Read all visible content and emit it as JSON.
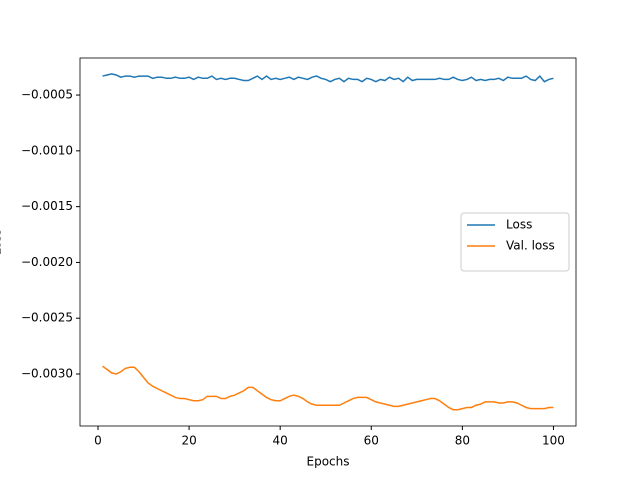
{
  "chart_data": {
    "type": "line",
    "xlabel": "Epochs",
    "ylabel": "Loss",
    "x": [
      1,
      2,
      3,
      4,
      5,
      6,
      7,
      8,
      9,
      10,
      11,
      12,
      13,
      14,
      15,
      16,
      17,
      18,
      19,
      20,
      21,
      22,
      23,
      24,
      25,
      26,
      27,
      28,
      29,
      30,
      31,
      32,
      33,
      34,
      35,
      36,
      37,
      38,
      39,
      40,
      41,
      42,
      43,
      44,
      45,
      46,
      47,
      48,
      49,
      50,
      51,
      52,
      53,
      54,
      55,
      56,
      57,
      58,
      59,
      60,
      61,
      62,
      63,
      64,
      65,
      66,
      67,
      68,
      69,
      70,
      71,
      72,
      73,
      74,
      75,
      76,
      77,
      78,
      79,
      80,
      81,
      82,
      83,
      84,
      85,
      86,
      87,
      88,
      89,
      90,
      91,
      92,
      93,
      94,
      95,
      96,
      97,
      98,
      99,
      100
    ],
    "series": [
      {
        "name": "Loss",
        "color": "#1f77b4",
        "values": [
          -0.00033,
          -0.00032,
          -0.00031,
          -0.00032,
          -0.00034,
          -0.00033,
          -0.00033,
          -0.00034,
          -0.00033,
          -0.00033,
          -0.00033,
          -0.00035,
          -0.00034,
          -0.00034,
          -0.00035,
          -0.00035,
          -0.00034,
          -0.00035,
          -0.00035,
          -0.00034,
          -0.00036,
          -0.00034,
          -0.00035,
          -0.00035,
          -0.00033,
          -0.00036,
          -0.00035,
          -0.00036,
          -0.00035,
          -0.00035,
          -0.00036,
          -0.00037,
          -0.00037,
          -0.00035,
          -0.00033,
          -0.00036,
          -0.00033,
          -0.00036,
          -0.00035,
          -0.00036,
          -0.00035,
          -0.00034,
          -0.00036,
          -0.00034,
          -0.00035,
          -0.00036,
          -0.00034,
          -0.00033,
          -0.00035,
          -0.00036,
          -0.00038,
          -0.00036,
          -0.00035,
          -0.00038,
          -0.00035,
          -0.00036,
          -0.00036,
          -0.00038,
          -0.00035,
          -0.00036,
          -0.00038,
          -0.00036,
          -0.00037,
          -0.00034,
          -0.00036,
          -0.00035,
          -0.00038,
          -0.00034,
          -0.00037,
          -0.00036,
          -0.00036,
          -0.00036,
          -0.00036,
          -0.00036,
          -0.00035,
          -0.00036,
          -0.00036,
          -0.00034,
          -0.00036,
          -0.00037,
          -0.00036,
          -0.00034,
          -0.00037,
          -0.00036,
          -0.00037,
          -0.00036,
          -0.00036,
          -0.00035,
          -0.00037,
          -0.00034,
          -0.00035,
          -0.00035,
          -0.00035,
          -0.00033,
          -0.00036,
          -0.00037,
          -0.00033,
          -0.00038,
          -0.00036,
          -0.00035
        ]
      },
      {
        "name": "Val. loss",
        "color": "#ff7f0e",
        "values": [
          -0.00293,
          -0.00296,
          -0.00299,
          -0.003,
          -0.00298,
          -0.00295,
          -0.00294,
          -0.00294,
          -0.00298,
          -0.00303,
          -0.00308,
          -0.00311,
          -0.00313,
          -0.00315,
          -0.00317,
          -0.00319,
          -0.00321,
          -0.00322,
          -0.00322,
          -0.00323,
          -0.00324,
          -0.00324,
          -0.00323,
          -0.0032,
          -0.0032,
          -0.0032,
          -0.00322,
          -0.00322,
          -0.0032,
          -0.00319,
          -0.00317,
          -0.00315,
          -0.00312,
          -0.00312,
          -0.00315,
          -0.00318,
          -0.00321,
          -0.00323,
          -0.00324,
          -0.00324,
          -0.00322,
          -0.0032,
          -0.00319,
          -0.0032,
          -0.00322,
          -0.00325,
          -0.00327,
          -0.00328,
          -0.00328,
          -0.00328,
          -0.00328,
          -0.00328,
          -0.00328,
          -0.00326,
          -0.00324,
          -0.00322,
          -0.00321,
          -0.00321,
          -0.00321,
          -0.00323,
          -0.00325,
          -0.00326,
          -0.00327,
          -0.00328,
          -0.00329,
          -0.00329,
          -0.00328,
          -0.00327,
          -0.00326,
          -0.00325,
          -0.00324,
          -0.00323,
          -0.00322,
          -0.00322,
          -0.00324,
          -0.00327,
          -0.0033,
          -0.00332,
          -0.00332,
          -0.00331,
          -0.0033,
          -0.0033,
          -0.00328,
          -0.00327,
          -0.00325,
          -0.00325,
          -0.00325,
          -0.00326,
          -0.00326,
          -0.00325,
          -0.00325,
          -0.00326,
          -0.00328,
          -0.0033,
          -0.00331,
          -0.00331,
          -0.00331,
          -0.00331,
          -0.0033,
          -0.0033
        ]
      }
    ],
    "xlim": [
      -3.95,
      104.95
    ],
    "ylim": [
      -0.003466,
      -0.000168
    ],
    "xticks": [
      0,
      20,
      40,
      60,
      80,
      100
    ],
    "yticks": [
      {
        "value": -0.003,
        "label": "−0.0030"
      },
      {
        "value": -0.0025,
        "label": "−0.0025"
      },
      {
        "value": -0.002,
        "label": "−0.0020"
      },
      {
        "value": -0.0015,
        "label": "−0.0015"
      },
      {
        "value": -0.001,
        "label": "−0.0010"
      },
      {
        "value": -0.0005,
        "label": "−0.0005"
      }
    ],
    "legend": "center right",
    "grid": false
  }
}
